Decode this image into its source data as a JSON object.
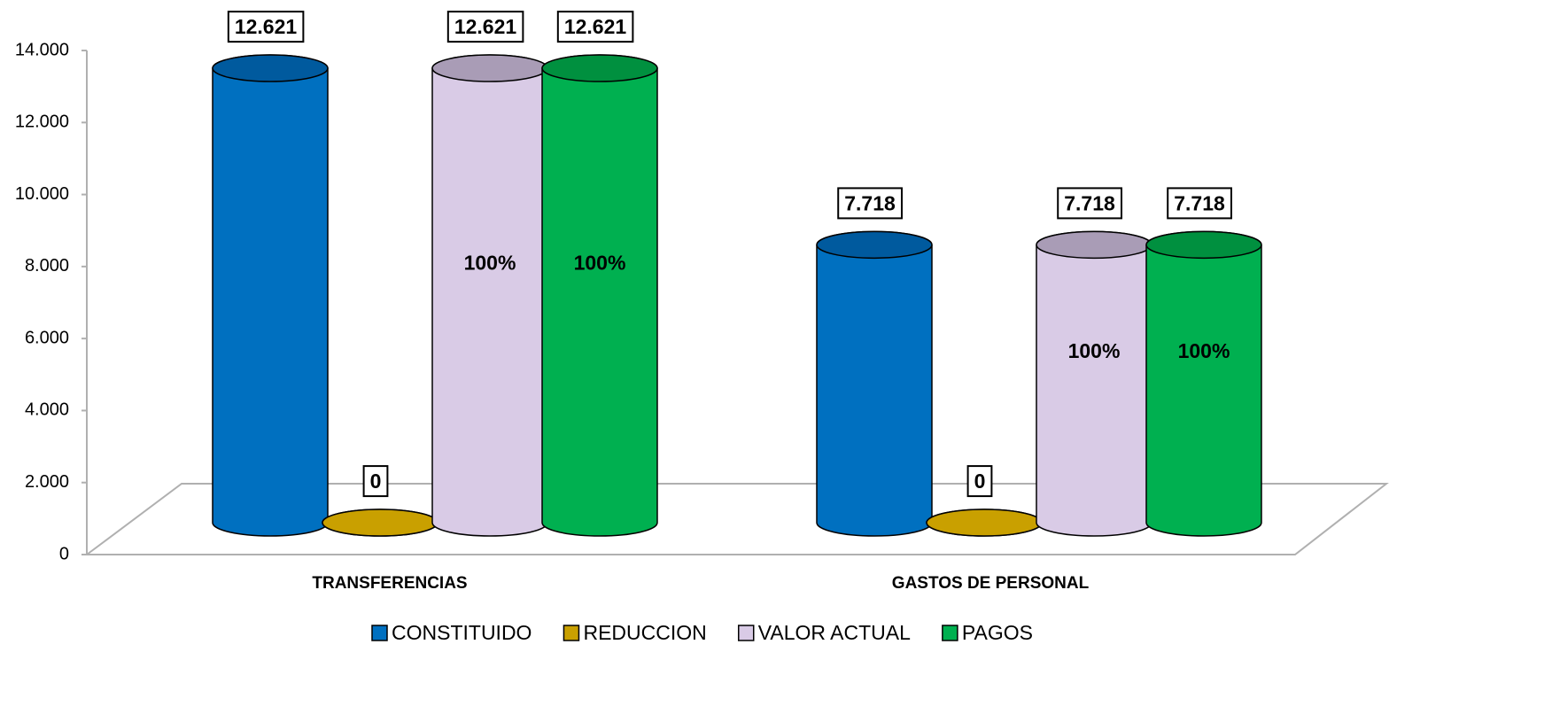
{
  "chart_data": {
    "type": "bar3d",
    "categories": [
      "TRANSFERENCIAS",
      "GASTOS DE PERSONAL"
    ],
    "series": [
      {
        "name": "CONSTITUIDO",
        "color": "#0070c0",
        "top_color": "#005a9e",
        "values": [
          12621,
          7718
        ],
        "value_labels": [
          "12.621",
          "7.718"
        ]
      },
      {
        "name": "REDUCCION",
        "color": "#c9a000",
        "top_color": "#c9a000",
        "values": [
          0,
          0
        ],
        "value_labels": [
          "0",
          "0"
        ]
      },
      {
        "name": "VALOR ACTUAL",
        "color": "#d9cbe6",
        "top_color": "#a99cb6",
        "values": [
          12621,
          7718
        ],
        "value_labels": [
          "12.621",
          "7.718"
        ],
        "inner_labels": [
          "100%",
          "100%"
        ]
      },
      {
        "name": "PAGOS",
        "color": "#00b050",
        "top_color": "#00903f",
        "values": [
          12621,
          7718
        ],
        "value_labels": [
          "12.621",
          "7.718"
        ],
        "inner_labels": [
          "100%",
          "100%"
        ]
      }
    ],
    "ylim": [
      0,
      14000
    ],
    "yticks": [
      0,
      {
        "value": 2000,
        "label": "2.000"
      },
      {
        "value": 4000,
        "label": "4.000"
      },
      {
        "value": 6000,
        "label": "6.000"
      },
      {
        "value": 8000,
        "label": "8.000"
      },
      {
        "value": 10000,
        "label": "10.000"
      },
      {
        "value": 12000,
        "label": "12.000"
      },
      {
        "value": 14000,
        "label": "14.000"
      }
    ],
    "legend": "bottom"
  }
}
